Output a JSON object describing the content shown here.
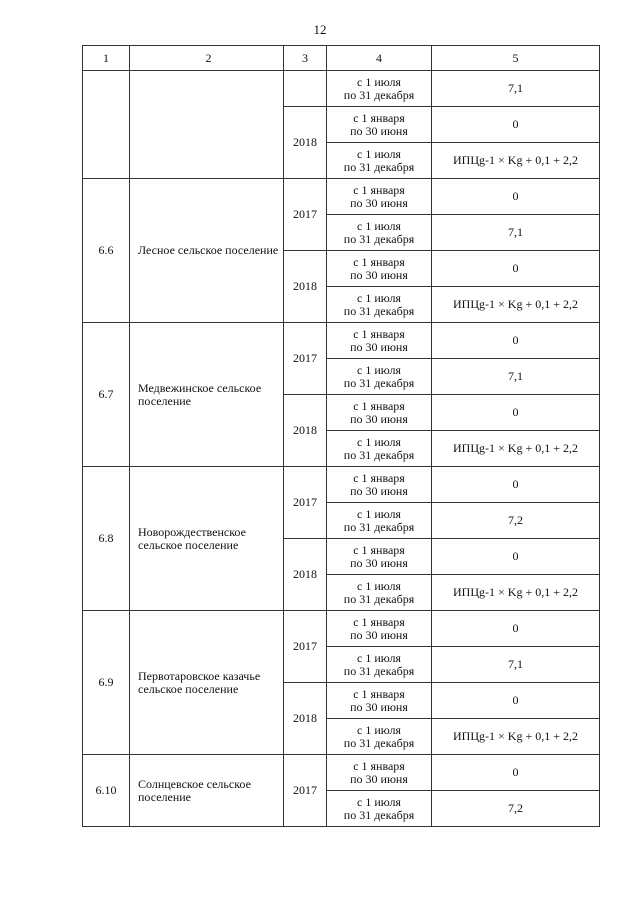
{
  "page_number": "12",
  "header": [
    "1",
    "2",
    "3",
    "4",
    "5"
  ],
  "periods": {
    "h1": [
      "с 1 января",
      "по 30 июня"
    ],
    "h2": [
      "с 1 июля",
      "по 31 декабря"
    ]
  },
  "formula": "ИПЦg-1 × Kg + 0,1 + 2,2",
  "groups": [
    {
      "num": "",
      "name": "",
      "years": [
        {
          "year": "",
          "rows": [
            {
              "p": "h2",
              "v": "7,1"
            }
          ]
        },
        {
          "year": "2018",
          "rows": [
            {
              "p": "h1",
              "v": "0"
            },
            {
              "p": "h2",
              "v": "ИПЦg-1 × Kg + 0,1 + 2,2"
            }
          ]
        }
      ]
    },
    {
      "num": "6.6",
      "name": "Лесное сельское поселение",
      "years": [
        {
          "year": "2017",
          "rows": [
            {
              "p": "h1",
              "v": "0"
            },
            {
              "p": "h2",
              "v": "7,1"
            }
          ]
        },
        {
          "year": "2018",
          "rows": [
            {
              "p": "h1",
              "v": "0"
            },
            {
              "p": "h2",
              "v": "ИПЦg-1 × Kg + 0,1 + 2,2"
            }
          ]
        }
      ]
    },
    {
      "num": "6.7",
      "name": "Медвежинское сельское поселение",
      "years": [
        {
          "year": "2017",
          "rows": [
            {
              "p": "h1",
              "v": "0"
            },
            {
              "p": "h2",
              "v": "7,1"
            }
          ]
        },
        {
          "year": "2018",
          "rows": [
            {
              "p": "h1",
              "v": "0"
            },
            {
              "p": "h2",
              "v": "ИПЦg-1 × Kg + 0,1 + 2,2"
            }
          ]
        }
      ]
    },
    {
      "num": "6.8",
      "name": "Новорождественское сельское поселение",
      "years": [
        {
          "year": "2017",
          "rows": [
            {
              "p": "h1",
              "v": "0"
            },
            {
              "p": "h2",
              "v": "7,2"
            }
          ]
        },
        {
          "year": "2018",
          "rows": [
            {
              "p": "h1",
              "v": "0"
            },
            {
              "p": "h2",
              "v": "ИПЦg-1 × Kg + 0,1 + 2,2"
            }
          ]
        }
      ]
    },
    {
      "num": "6.9",
      "name": "Первотаровское казачье сельское поселение",
      "years": [
        {
          "year": "2017",
          "rows": [
            {
              "p": "h1",
              "v": "0"
            },
            {
              "p": "h2",
              "v": "7,1"
            }
          ]
        },
        {
          "year": "2018",
          "rows": [
            {
              "p": "h1",
              "v": "0"
            },
            {
              "p": "h2",
              "v": "ИПЦg-1 × Kg + 0,1 + 2,2"
            }
          ]
        }
      ]
    },
    {
      "num": "6.10",
      "name": "Солнцевское сельское поселение",
      "years": [
        {
          "year": "2017",
          "rows": [
            {
              "p": "h1",
              "v": "0"
            },
            {
              "p": "h2",
              "v": "7,2"
            }
          ]
        }
      ]
    }
  ]
}
